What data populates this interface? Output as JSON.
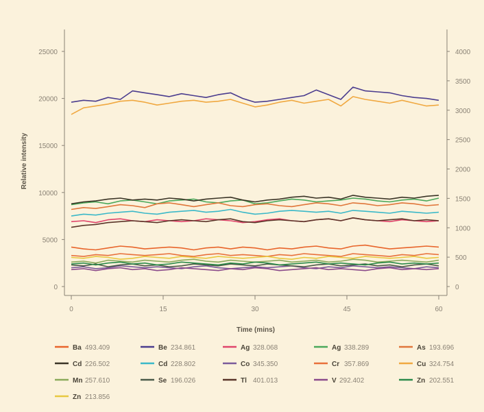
{
  "colors": {
    "background": "#fbf2dc",
    "axis": "#8a8275"
  },
  "chart_data": {
    "type": "line",
    "title": "",
    "xlabel": "Time (mins)",
    "ylabel": "Relative intensity",
    "x_ticks": [
      "0",
      "15",
      "30",
      "45",
      "60"
    ],
    "y_ticks": [
      "0",
      "5000",
      "10000",
      "15000",
      "20000",
      "25000"
    ],
    "y2_ticks": [
      "0",
      "500",
      "1000",
      "1500",
      "2000",
      "2500",
      "3000",
      "3500",
      "4000"
    ],
    "xlim": [
      0,
      60
    ],
    "ylim": [
      0,
      27000
    ],
    "y2lim": [
      0,
      4400
    ],
    "grid": false,
    "legend_position": "bottom",
    "x": [
      0,
      2,
      4,
      6,
      8,
      10,
      12,
      14,
      16,
      18,
      20,
      22,
      24,
      26,
      28,
      30,
      32,
      34,
      36,
      38,
      40,
      42,
      44,
      46,
      48,
      50,
      52,
      54,
      56,
      58,
      60
    ],
    "series": [
      {
        "element": "Ba",
        "wavelength": "493.409",
        "color": "#e8642a",
        "values": [
          4200,
          4000,
          3900,
          4100,
          4300,
          4200,
          4000,
          4100,
          4200,
          4100,
          3900,
          4100,
          4200,
          4000,
          4200,
          4100,
          3900,
          4100,
          4000,
          4200,
          4300,
          4100,
          4000,
          4300,
          4400,
          4200,
          4000,
          4100,
          4200,
          4300,
          4200
        ]
      },
      {
        "element": "Be",
        "wavelength": "234.861",
        "color": "#4a3c8e",
        "values": [
          19600,
          19800,
          19700,
          20100,
          19900,
          20800,
          20600,
          20400,
          20200,
          20500,
          20300,
          20100,
          20400,
          20600,
          20000,
          19600,
          19700,
          19900,
          20100,
          20300,
          20900,
          20400,
          19900,
          21200,
          20800,
          20700,
          20600,
          20300,
          20100,
          20000,
          19800
        ]
      },
      {
        "element": "Ag",
        "wavelength": "328.068",
        "color": "#e0446a",
        "values": [
          6900,
          7000,
          6800,
          7100,
          7200,
          7000,
          6900,
          7100,
          7000,
          6900,
          7000,
          7200,
          7100,
          7000,
          6800,
          6900,
          7100,
          7200,
          7000,
          6900,
          7100,
          7200,
          7000,
          7300,
          7100,
          7000,
          6900,
          7100,
          7000,
          6900,
          7000
        ]
      },
      {
        "element": "Ag",
        "wavelength": "338.289",
        "color": "#4aa85a",
        "values": [
          8700,
          8900,
          9000,
          8800,
          9100,
          9200,
          9000,
          8800,
          9100,
          9200,
          9300,
          9000,
          8900,
          9100,
          9200,
          8800,
          8900,
          9100,
          9300,
          9200,
          9000,
          9100,
          9200,
          9400,
          9300,
          9100,
          9000,
          9200,
          9300,
          9100,
          9400
        ]
      },
      {
        "element": "As",
        "wavelength": "193.696",
        "color": "#e0763a",
        "values": [
          8200,
          8400,
          8300,
          8500,
          8700,
          8600,
          8400,
          8800,
          8900,
          8700,
          8500,
          8700,
          8900,
          8600,
          8500,
          8700,
          8800,
          8600,
          8500,
          8700,
          8900,
          8800,
          8600,
          8900,
          8800,
          8600,
          8700,
          8900,
          8800,
          8600,
          8700
        ]
      },
      {
        "element": "Cd",
        "wavelength": "226.502",
        "color": "#3a3426",
        "values": [
          8800,
          9000,
          9100,
          9300,
          9400,
          9200,
          9300,
          9200,
          9400,
          9300,
          9100,
          9300,
          9400,
          9500,
          9200,
          9000,
          9200,
          9300,
          9500,
          9600,
          9400,
          9500,
          9300,
          9700,
          9500,
          9400,
          9300,
          9500,
          9400,
          9600,
          9700
        ]
      },
      {
        "element": "Cd",
        "wavelength": "228.802",
        "color": "#3ab8c8",
        "values": [
          7500,
          7700,
          7600,
          7800,
          7900,
          8000,
          7800,
          7700,
          7900,
          8000,
          8100,
          7900,
          8000,
          8200,
          7900,
          7700,
          7800,
          8000,
          8100,
          8000,
          7900,
          8000,
          7800,
          8100,
          8000,
          7900,
          7800,
          8000,
          7900,
          7800,
          7900
        ]
      },
      {
        "element": "Co",
        "wavelength": "345.350",
        "color": "#7a5a9a",
        "values": [
          2000,
          2100,
          1900,
          2000,
          2200,
          2100,
          2000,
          2100,
          2000,
          1900,
          2100,
          2200,
          2000,
          1900,
          2000,
          2100,
          2000,
          2100,
          2200,
          2000,
          1900,
          2100,
          2000,
          2200,
          2100,
          2000,
          2100,
          2000,
          1900,
          2100,
          2000
        ]
      },
      {
        "element": "Cr",
        "wavelength": "357.869",
        "color": "#e8703a",
        "values": [
          3300,
          3200,
          3400,
          3300,
          3500,
          3400,
          3300,
          3400,
          3500,
          3300,
          3200,
          3400,
          3500,
          3300,
          3400,
          3300,
          3200,
          3400,
          3300,
          3500,
          3400,
          3300,
          3200,
          3500,
          3400,
          3300,
          3200,
          3400,
          3300,
          3500,
          3400
        ]
      },
      {
        "element": "Cu",
        "wavelength": "324.754",
        "color": "#f0a840",
        "values": [
          18300,
          19000,
          19200,
          19400,
          19700,
          19800,
          19600,
          19300,
          19500,
          19700,
          19800,
          19600,
          19700,
          19900,
          19500,
          19100,
          19300,
          19600,
          19800,
          19500,
          19700,
          19900,
          19200,
          20200,
          19900,
          19700,
          19500,
          19800,
          19500,
          19200,
          19300
        ]
      },
      {
        "element": "Mn",
        "wavelength": "257.610",
        "color": "#8aaa5a",
        "values": [
          2600,
          2700,
          2500,
          2800,
          2700,
          2600,
          2800,
          2700,
          2600,
          2800,
          2900,
          2700,
          2600,
          2800,
          2700,
          2600,
          2700,
          2800,
          2600,
          2700,
          2800,
          2600,
          2700,
          2900,
          2800,
          2600,
          2700,
          2800,
          2700,
          2600,
          2800
        ]
      },
      {
        "element": "Se",
        "wavelength": "196.026",
        "color": "#4a5a48",
        "values": [
          2300,
          2200,
          2400,
          2100,
          2300,
          2400,
          2200,
          2300,
          2100,
          2200,
          2400,
          2300,
          2200,
          2400,
          2300,
          2200,
          2400,
          2300,
          2200,
          2100,
          2300,
          2400,
          2200,
          2300,
          2400,
          2200,
          2300,
          2100,
          2300,
          2400,
          2200
        ]
      },
      {
        "element": "Tl",
        "wavelength": "401.013",
        "color": "#5a3428",
        "values": [
          6300,
          6500,
          6600,
          6800,
          6900,
          7000,
          6900,
          6800,
          7000,
          7100,
          7000,
          6900,
          7100,
          7200,
          6900,
          6800,
          7000,
          7100,
          7000,
          6900,
          7100,
          7200,
          7000,
          7300,
          7100,
          7000,
          7100,
          7200,
          7000,
          7100,
          7000
        ]
      },
      {
        "element": "V",
        "wavelength": "292.402",
        "color": "#8a4a8a",
        "values": [
          1800,
          1900,
          1700,
          1900,
          2000,
          1800,
          1900,
          1700,
          1800,
          2000,
          1900,
          1800,
          1700,
          1900,
          1800,
          2000,
          1900,
          1700,
          1800,
          1900,
          2000,
          1800,
          1900,
          1800,
          1700,
          1900,
          2000,
          1800,
          1900,
          1800,
          1900
        ]
      },
      {
        "element": "Zn",
        "wavelength": "202.551",
        "color": "#2a8a4a",
        "values": [
          2400,
          2500,
          2300,
          2500,
          2600,
          2400,
          2500,
          2300,
          2400,
          2600,
          2500,
          2400,
          2300,
          2500,
          2400,
          2600,
          2500,
          2300,
          2400,
          2500,
          2600,
          2400,
          2500,
          2400,
          2300,
          2500,
          2600,
          2400,
          2500,
          2400,
          2500
        ]
      },
      {
        "element": "Zn",
        "wavelength": "213.856",
        "color": "#e8c840",
        "values": [
          3100,
          3000,
          3200,
          3100,
          2900,
          3000,
          3200,
          3100,
          3000,
          3200,
          3100,
          3000,
          3200,
          3100,
          3000,
          3100,
          3200,
          3000,
          2900,
          3100,
          3000,
          3200,
          3100,
          3000,
          3200,
          3100,
          3000,
          3100,
          3200,
          3000,
          3100
        ]
      }
    ]
  }
}
